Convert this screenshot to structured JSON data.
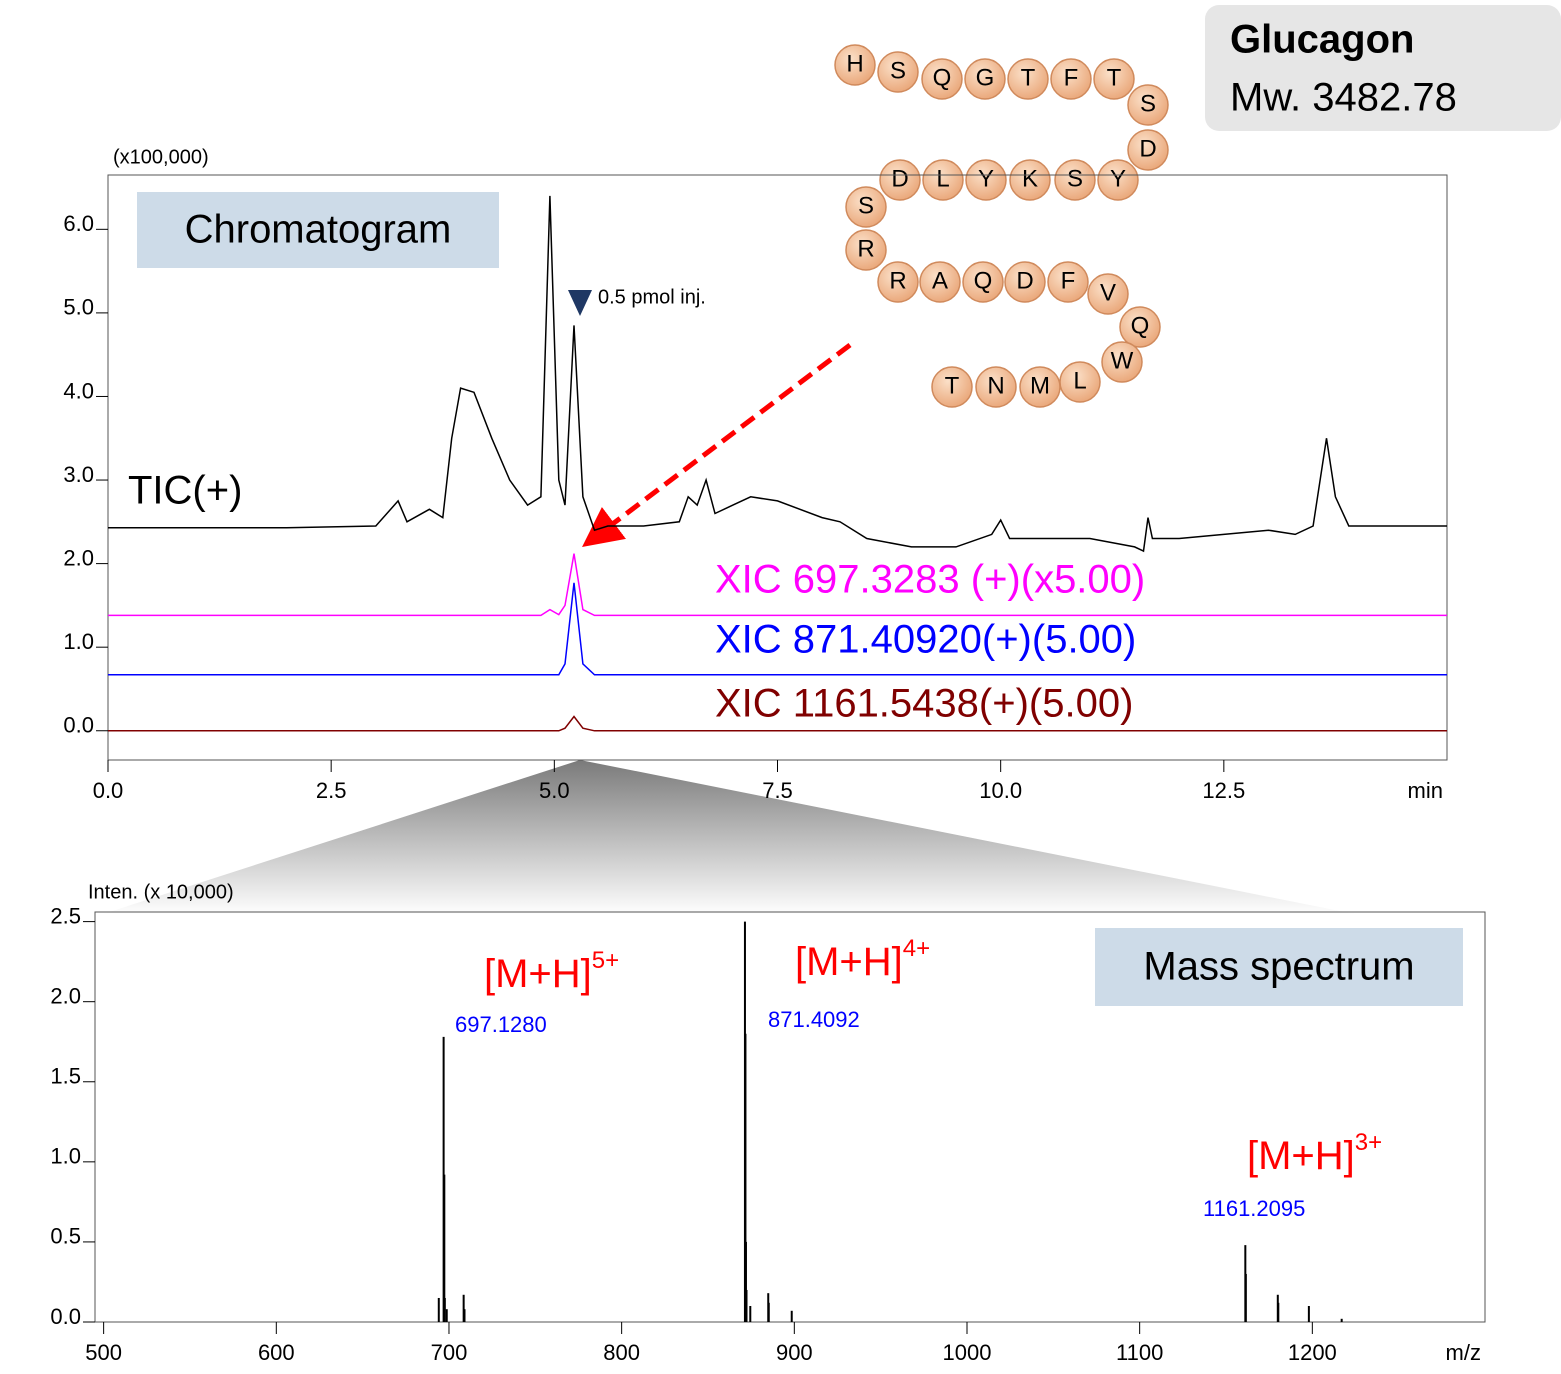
{
  "compound": {
    "name": "Glucagon",
    "mass": "Mw. 3482.78",
    "residues": [
      "H",
      "S",
      "Q",
      "G",
      "T",
      "F",
      "T",
      "S",
      "D",
      "Y",
      "S",
      "K",
      "Y",
      "L",
      "D",
      "S",
      "R",
      "R",
      "A",
      "Q",
      "D",
      "F",
      "V",
      "Q",
      "W",
      "L",
      "M",
      "N",
      "T"
    ]
  },
  "chart_data": [
    {
      "type": "line",
      "title": "Chromatogram",
      "y_unit_label": "(x100,000)",
      "xlabel": "min",
      "annotations": [
        "0.5 pmol inj."
      ],
      "xlim": [
        0,
        15
      ],
      "ylim": [
        -0.35,
        6.65
      ],
      "xticks": [
        {
          "value": 0,
          "label": "0.0"
        },
        2.5,
        {
          "value": 5,
          "label": "5.0"
        },
        7.5,
        {
          "value": 10,
          "label": "10.0"
        },
        12.5
      ],
      "yticks": [
        {
          "value": 0,
          "label": "0.0"
        },
        {
          "value": 1,
          "label": "1.0"
        },
        {
          "value": 2,
          "label": "2.0"
        },
        {
          "value": 3,
          "label": "3.0"
        },
        {
          "value": 4,
          "label": "4.0"
        },
        {
          "value": 5,
          "label": "5.0"
        },
        {
          "value": 6,
          "label": "6.0"
        }
      ],
      "x": [
        0,
        1,
        2,
        3,
        3.25,
        3.35,
        3.6,
        3.75,
        3.85,
        3.95,
        4.1,
        4.3,
        4.5,
        4.7,
        4.85,
        4.95,
        5.05,
        5.12,
        5.22,
        5.32,
        5.45,
        5.6,
        6.0,
        6.4,
        6.5,
        6.6,
        6.7,
        6.8,
        7.0,
        7.2,
        7.5,
        8.0,
        8.2,
        8.5,
        9.0,
        9.5,
        9.9,
        10.0,
        10.1,
        10.5,
        11.0,
        11.5,
        11.6,
        11.65,
        11.7,
        12.0,
        12.5,
        13.0,
        13.3,
        13.5,
        13.65,
        13.75,
        13.9,
        14.5,
        15.0
      ],
      "series": [
        {
          "name": "TIC(+)",
          "color": "#000000",
          "values": [
            2.43,
            2.43,
            2.43,
            2.45,
            2.75,
            2.5,
            2.65,
            2.55,
            3.5,
            4.1,
            4.05,
            3.5,
            3.0,
            2.7,
            2.8,
            6.4,
            3.0,
            2.7,
            4.85,
            2.8,
            2.4,
            2.45,
            2.45,
            2.5,
            2.8,
            2.7,
            3.0,
            2.6,
            2.7,
            2.8,
            2.75,
            2.55,
            2.5,
            2.3,
            2.2,
            2.2,
            2.35,
            2.52,
            2.3,
            2.3,
            2.3,
            2.2,
            2.15,
            2.55,
            2.3,
            2.3,
            2.35,
            2.4,
            2.35,
            2.45,
            3.5,
            2.8,
            2.45,
            2.45,
            2.45
          ]
        },
        {
          "name": "XIC  697.3283 (+)(x5.00)",
          "color": "#ff00ff",
          "values": [
            1.38,
            1.38,
            1.38,
            1.38,
            1.38,
            1.38,
            1.38,
            1.38,
            1.38,
            1.38,
            1.38,
            1.38,
            1.38,
            1.38,
            1.38,
            1.45,
            1.39,
            1.5,
            2.12,
            1.45,
            1.38,
            1.38,
            1.38,
            1.38,
            1.38,
            1.38,
            1.38,
            1.38,
            1.38,
            1.38,
            1.38,
            1.38,
            1.38,
            1.38,
            1.38,
            1.38,
            1.38,
            1.38,
            1.38,
            1.38,
            1.38,
            1.38,
            1.38,
            1.38,
            1.38,
            1.38,
            1.38,
            1.38,
            1.38,
            1.38,
            1.38,
            1.38,
            1.38,
            1.38,
            1.38
          ]
        },
        {
          "name": "XIC  871.40920(+)(5.00)",
          "color": "#0000ff",
          "values": [
            0.67,
            0.67,
            0.67,
            0.67,
            0.67,
            0.67,
            0.67,
            0.67,
            0.67,
            0.67,
            0.67,
            0.67,
            0.67,
            0.67,
            0.67,
            0.67,
            0.67,
            0.8,
            1.77,
            0.8,
            0.67,
            0.67,
            0.67,
            0.67,
            0.67,
            0.67,
            0.67,
            0.67,
            0.67,
            0.67,
            0.67,
            0.67,
            0.67,
            0.67,
            0.67,
            0.67,
            0.67,
            0.67,
            0.67,
            0.67,
            0.67,
            0.67,
            0.67,
            0.67,
            0.67,
            0.67,
            0.67,
            0.67,
            0.67,
            0.67,
            0.67,
            0.67,
            0.67,
            0.67,
            0.67
          ]
        },
        {
          "name": "XIC  1161.5438(+)(5.00)",
          "color": "#800000",
          "values": [
            0,
            0,
            0,
            0,
            0,
            0,
            0,
            0,
            0,
            0,
            0,
            0,
            0,
            0,
            0,
            0,
            0,
            0.03,
            0.17,
            0.03,
            0,
            0,
            0,
            0,
            0,
            0,
            0,
            0,
            0,
            0,
            0,
            0,
            0,
            0,
            0,
            0,
            0,
            0,
            0,
            0,
            0,
            0,
            0,
            0,
            0,
            0,
            0,
            0,
            0,
            0,
            0,
            0,
            0,
            0,
            0
          ]
        }
      ]
    },
    {
      "type": "stem",
      "title": "Mass spectrum",
      "y_unit_label": "Inten. (x 10,000)",
      "xlabel": "m/z",
      "color": "#000000",
      "annotations": [
        {
          "text": "[M+H]",
          "superscript": "5+"
        },
        {
          "text": "[M+H]",
          "superscript": "4+"
        },
        {
          "text": "[M+H]",
          "superscript": "3+"
        }
      ],
      "peak_labels": [
        "697.1280",
        "871.4092",
        "1161.2095"
      ],
      "xlim": [
        495,
        1300
      ],
      "ylim": [
        0,
        2.56
      ],
      "xticks": [
        500,
        600,
        700,
        800,
        900,
        1000,
        1100,
        1200
      ],
      "yticks": [
        {
          "value": 0,
          "label": "0.0"
        },
        0.5,
        {
          "value": 1,
          "label": "1.0"
        },
        1.5,
        {
          "value": 2,
          "label": "2.0"
        },
        2.5
      ],
      "x": [
        694.1,
        696.9,
        697.3,
        697.6,
        698.7,
        708.5,
        709.0,
        871.41,
        871.7,
        872.0,
        872.3,
        874.5,
        884.9,
        885.2,
        898.5,
        1161.2,
        1161.5,
        1180.0,
        1180.3,
        1198.0,
        1217.0
      ],
      "values": [
        0.15,
        1.78,
        0.92,
        0.15,
        0.08,
        0.17,
        0.08,
        2.5,
        1.8,
        0.5,
        0.2,
        0.1,
        0.18,
        0.12,
        0.07,
        0.48,
        0.3,
        0.17,
        0.12,
        0.1,
        0.02
      ]
    }
  ]
}
